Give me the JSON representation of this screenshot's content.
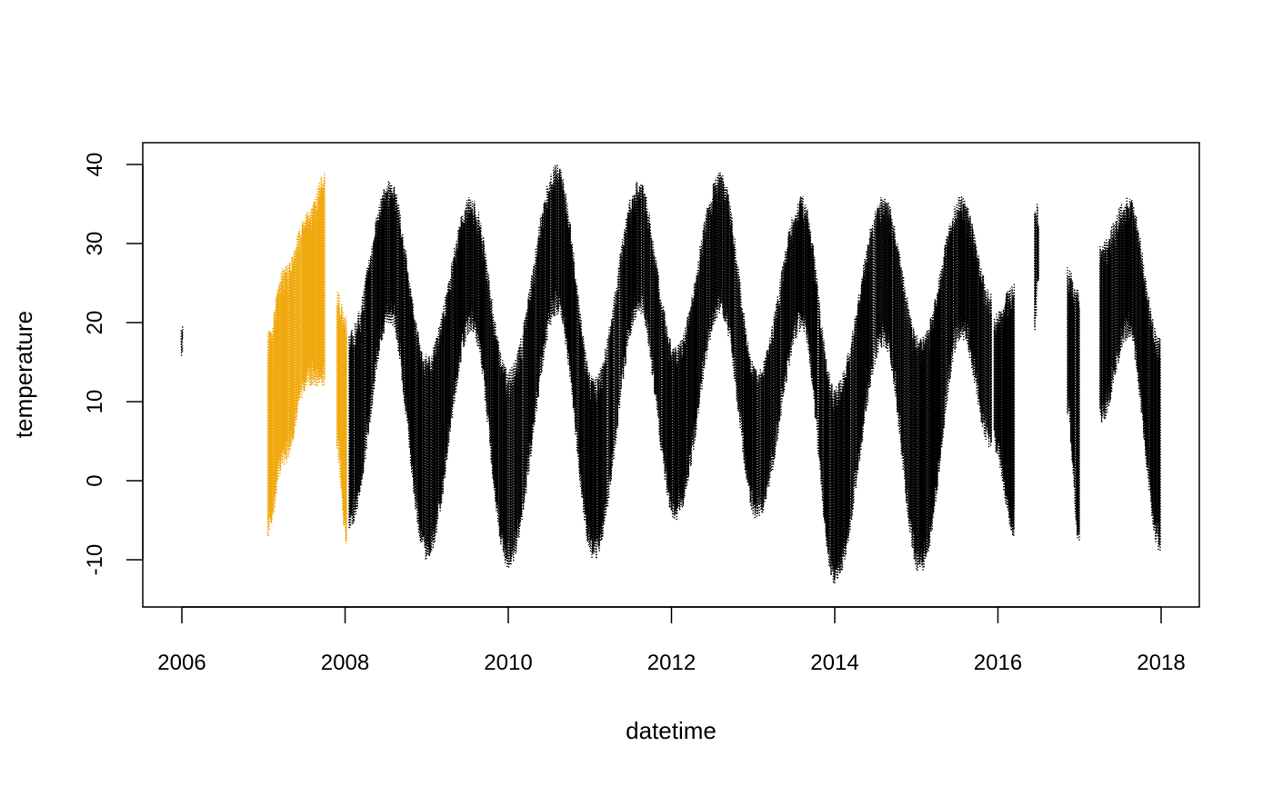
{
  "chart_data": {
    "type": "scatter",
    "xlabel": "datetime",
    "ylabel": "temperature",
    "xlim": [
      2005.76,
      2018.47
    ],
    "ylim": [
      -16.3,
      43.0
    ],
    "x_ticks": [
      "2006",
      "2008",
      "2010",
      "2012",
      "2014",
      "2016",
      "2018"
    ],
    "y_ticks": [
      "-10",
      "0",
      "10",
      "20",
      "30",
      "40"
    ],
    "grid": false,
    "legend": "none",
    "colors": {
      "highlight": "#f0a80c",
      "main": "#000000",
      "axis": "#000000"
    },
    "note_data": "Hourly-resolution series; summarized as seasonal daily envelopes (segments), approximated from the figure.",
    "series": [
      {
        "color": "#f0a80c",
        "segments": [
          {
            "start": 2007.05,
            "end": 2007.25,
            "min_start": -7,
            "min_end": 2,
            "max_start": 19,
            "max_end": 27
          },
          {
            "start": 2007.25,
            "end": 2007.55,
            "min_start": 2,
            "min_end": 12,
            "max_start": 27,
            "max_end": 34
          },
          {
            "start": 2007.55,
            "end": 2007.75,
            "min_start": 12,
            "min_end": 12,
            "max_start": 34,
            "max_end": 39
          },
          {
            "start": 2007.9,
            "end": 2008.02,
            "min_start": 3,
            "min_end": -8,
            "max_start": 24,
            "max_end": 21
          }
        ]
      },
      {
        "color": "#000000",
        "segments": [
          {
            "start": 2005.99,
            "end": 2006.01,
            "min_start": 16,
            "min_end": 16,
            "max_start": 18,
            "max_end": 18
          },
          {
            "start": 2008.05,
            "end": 2008.55,
            "min_start": -6,
            "min_end": 20,
            "max_start": 19,
            "max_end": 38
          },
          {
            "start": 2008.55,
            "end": 2009.0,
            "min_start": 20,
            "min_end": -10,
            "max_start": 38,
            "max_end": 16
          },
          {
            "start": 2009.0,
            "end": 2009.55,
            "min_start": -10,
            "min_end": 19,
            "max_start": 16,
            "max_end": 36
          },
          {
            "start": 2009.55,
            "end": 2010.0,
            "min_start": 19,
            "min_end": -11,
            "max_start": 36,
            "max_end": 14
          },
          {
            "start": 2010.0,
            "end": 2010.6,
            "min_start": -11,
            "min_end": 21,
            "max_start": 14,
            "max_end": 40
          },
          {
            "start": 2010.6,
            "end": 2011.05,
            "min_start": 21,
            "min_end": -10,
            "max_start": 40,
            "max_end": 13
          },
          {
            "start": 2011.05,
            "end": 2011.6,
            "min_start": -10,
            "min_end": 21,
            "max_start": 13,
            "max_end": 38
          },
          {
            "start": 2011.6,
            "end": 2012.05,
            "min_start": 21,
            "min_end": -5,
            "max_start": 38,
            "max_end": 17
          },
          {
            "start": 2012.05,
            "end": 2012.6,
            "min_start": -5,
            "min_end": 21,
            "max_start": 17,
            "max_end": 39
          },
          {
            "start": 2012.6,
            "end": 2013.05,
            "min_start": 21,
            "min_end": -5,
            "max_start": 39,
            "max_end": 14
          },
          {
            "start": 2013.05,
            "end": 2013.6,
            "min_start": -5,
            "min_end": 19,
            "max_start": 14,
            "max_end": 36
          },
          {
            "start": 2013.6,
            "end": 2014.0,
            "min_start": 19,
            "min_end": -13,
            "max_start": 36,
            "max_end": 12
          },
          {
            "start": 2014.0,
            "end": 2014.6,
            "min_start": -13,
            "min_end": 17,
            "max_start": 12,
            "max_end": 36
          },
          {
            "start": 2014.6,
            "end": 2015.05,
            "min_start": 17,
            "min_end": -12,
            "max_start": 36,
            "max_end": 18
          },
          {
            "start": 2015.05,
            "end": 2015.55,
            "min_start": -12,
            "min_end": 18,
            "max_start": 18,
            "max_end": 36
          },
          {
            "start": 2015.55,
            "end": 2015.92,
            "min_start": 18,
            "min_end": 4,
            "max_start": 36,
            "max_end": 24
          },
          {
            "start": 2015.95,
            "end": 2016.2,
            "min_start": 4,
            "min_end": -7,
            "max_start": 21,
            "max_end": 25
          },
          {
            "start": 2016.45,
            "end": 2016.5,
            "min_start": 19,
            "min_end": 24,
            "max_start": 35,
            "max_end": 35
          },
          {
            "start": 2016.85,
            "end": 2017.0,
            "min_start": 8,
            "min_end": -9,
            "max_start": 27,
            "max_end": 24
          },
          {
            "start": 2017.25,
            "end": 2017.6,
            "min_start": 7,
            "min_end": 18,
            "max_start": 30,
            "max_end": 36
          },
          {
            "start": 2017.6,
            "end": 2017.99,
            "min_start": 18,
            "min_end": -9,
            "max_start": 36,
            "max_end": 18
          }
        ]
      }
    ]
  }
}
